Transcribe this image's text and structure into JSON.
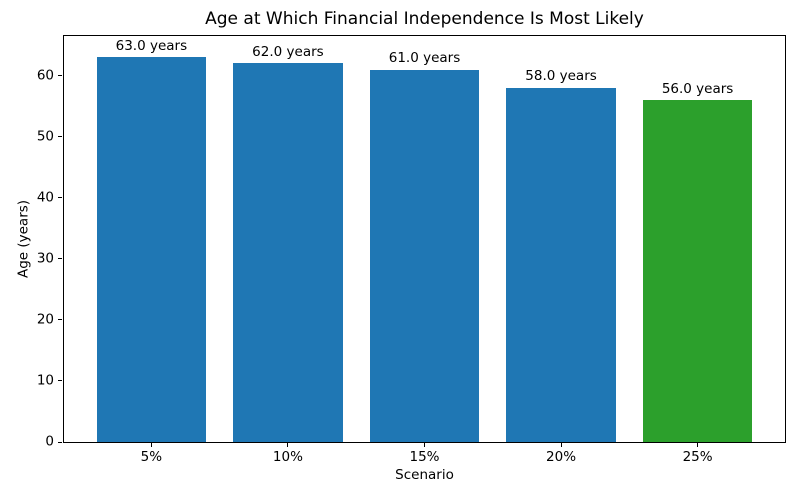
{
  "chart_data": {
    "type": "bar",
    "title": "Age at Which Financial Independence Is Most Likely",
    "xlabel": "Scenario",
    "ylabel": "Age (years)",
    "categories": [
      "5%",
      "10%",
      "15%",
      "20%",
      "25%"
    ],
    "values": [
      63.0,
      62.0,
      61.0,
      58.0,
      56.0
    ],
    "bar_labels": [
      "63.0 years",
      "62.0 years",
      "61.0 years",
      "58.0 years",
      "56.0 years"
    ],
    "bar_colors": [
      "#1f77b4",
      "#1f77b4",
      "#1f77b4",
      "#1f77b4",
      "#2ca02c"
    ],
    "default_color": "#1f77b4",
    "highlight_color": "#2ca02c",
    "ylim": [
      0,
      66.5
    ],
    "yticks": [
      0,
      10,
      20,
      30,
      40,
      50,
      60
    ],
    "grid": false,
    "legend": "none",
    "bar_width_fraction": 0.8,
    "x_margin_units": 0.64
  }
}
